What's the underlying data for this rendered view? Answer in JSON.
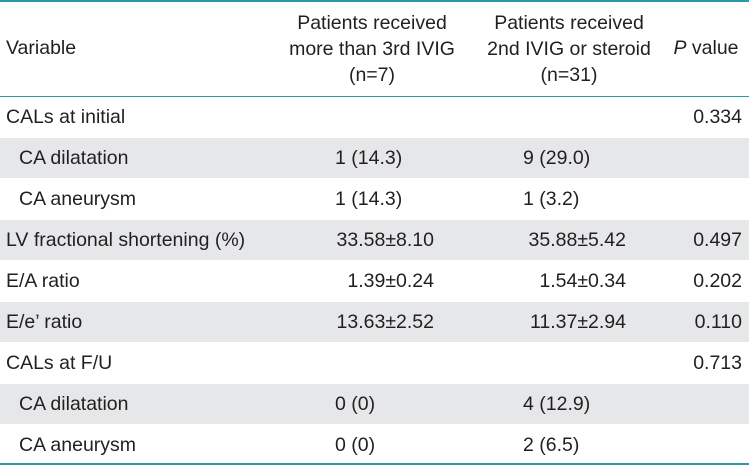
{
  "table": {
    "headers": {
      "variable": "Variable",
      "group1": [
        "Patients received",
        "more than 3rd IVIG",
        "(n=7)"
      ],
      "group2": [
        "Patients received",
        "2nd IVIG or steroid",
        "(n=31)"
      ],
      "p_italic": "P",
      "p_rest": " value"
    },
    "rows": [
      {
        "variable": "CALs at initial",
        "g1": "",
        "g2": "",
        "p": "0.334"
      },
      {
        "variable": "CA dilatation",
        "g1": "1 (14.3)",
        "g2": "9 (29.0)",
        "p": ""
      },
      {
        "variable": "CA aneurysm",
        "g1": "1 (14.3)",
        "g2": "1 (3.2)",
        "p": ""
      },
      {
        "variable": "LV fractional shortening (%)",
        "g1": "33.58±8.10",
        "g2": "35.88±5.42",
        "p": "0.497"
      },
      {
        "variable": "E/A ratio",
        "g1": "1.39±0.24",
        "g2": "1.54±0.34",
        "p": "0.202"
      },
      {
        "variable": "E/e’ ratio",
        "g1": "13.63±2.52",
        "g2": "11.37±2.94",
        "p": "0.110"
      },
      {
        "variable": "CALs at F/U",
        "g1": "",
        "g2": "",
        "p": "0.713"
      },
      {
        "variable": "CA dilatation",
        "g1": "0 (0)",
        "g2": "4 (12.9)",
        "p": ""
      },
      {
        "variable": "CA aneurysm",
        "g1": "0 (0)",
        "g2": "2 (6.5)",
        "p": ""
      }
    ]
  },
  "colors": {
    "rule": "#2a9aa6",
    "shade": "#e6e7e8",
    "text": "#231f20"
  }
}
